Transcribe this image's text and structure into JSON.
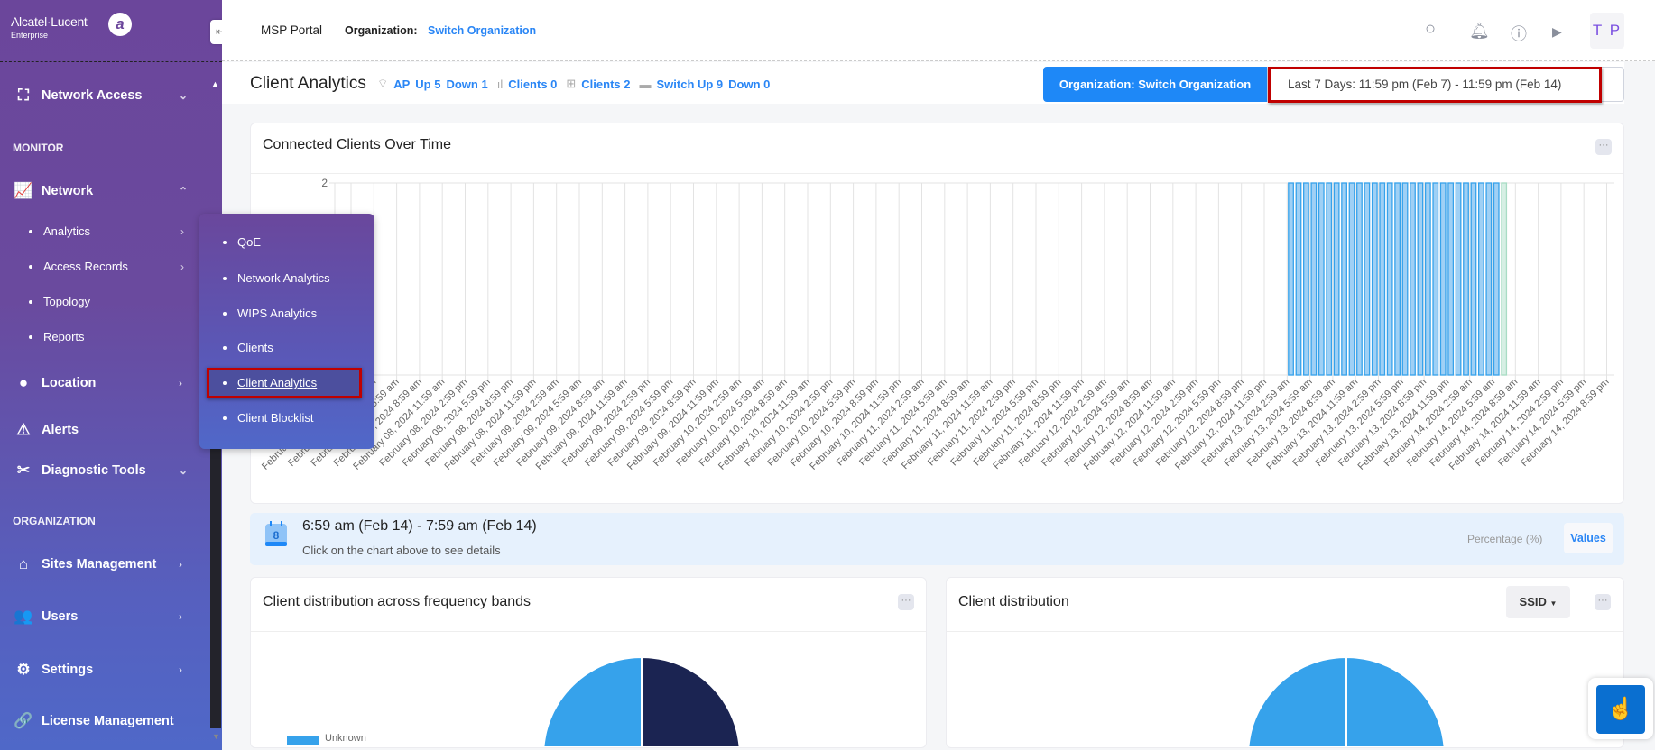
{
  "brand": {
    "name": "Alcatel·Lucent",
    "sub": "Enterprise",
    "logo_letter": "a"
  },
  "header": {
    "portal": "MSP Portal",
    "org_label": "Organization:",
    "org_link": "Switch Organization",
    "avatar": "T P"
  },
  "sidebar": {
    "network_access": "Network Access",
    "monitor": "MONITOR",
    "network": "Network",
    "network_sub": [
      "Analytics",
      "Access Records",
      "Topology",
      "Reports"
    ],
    "location": "Location",
    "alerts": "Alerts",
    "diagnostic": "Diagnostic Tools",
    "organization": "ORGANIZATION",
    "sites": "Sites Management",
    "users": "Users",
    "settings": "Settings",
    "license": "License Management"
  },
  "popup": {
    "items": [
      "QoE",
      "Network Analytics",
      "WIPS Analytics",
      "Clients",
      "Client Analytics",
      "Client Blocklist"
    ],
    "active": "Client Analytics"
  },
  "subheader": {
    "title": "Client Analytics",
    "ap": "AP",
    "ap_up": "Up 5",
    "ap_down": "Down 1",
    "wifi_clients": "Clients 0",
    "wired_clients": "Clients 2",
    "switch_up": "Switch Up 9",
    "switch_down": "Down 0",
    "org_button": "Organization: Switch Organization",
    "date_range": "Last 7 Days: 11:59 pm (Feb 7) - 11:59 pm (Feb 14)"
  },
  "info": {
    "calendar_day": "8",
    "range": "6:59 am (Feb 14) - 7:59 am (Feb 14)",
    "hint": "Click on the chart above to see details",
    "percentage": "Percentage (%)",
    "values": "Values"
  },
  "cards": {
    "clients_over_time": "Connected Clients Over Time",
    "freq_bands": "Client distribution across frequency bands",
    "distribution": "Client distribution",
    "ssid": "SSID",
    "more": "···",
    "legend_unknown": "Unknown"
  },
  "colors": {
    "accent": "#1e88f7",
    "bar_fill": "#9fd0f5",
    "bar_stroke": "#36a2eb",
    "bar_selected": "#a8dcc4",
    "pie_dark": "#1b2452",
    "pie_light": "#36a2eb"
  },
  "chart_data": [
    {
      "type": "bar",
      "title": "Connected Clients Over Time",
      "ylim": [
        0,
        2
      ],
      "y_ticks": [
        "2"
      ],
      "grid": true,
      "x_ticks": [
        "February 07, 2024 11:59 pm",
        "February 08, 2024 2:59 am",
        "February 08, 2024 5:59 am",
        "February 08, 2024 8:59 am",
        "February 08, 2024 11:59 am",
        "February 08, 2024 2:59 pm",
        "February 08, 2024 5:59 pm",
        "February 08, 2024 8:59 pm",
        "February 08, 2024 11:59 pm",
        "February 09, 2024 2:59 am",
        "February 09, 2024 5:59 am",
        "February 09, 2024 8:59 am",
        "February 09, 2024 11:59 am",
        "February 09, 2024 2:59 pm",
        "February 09, 2024 5:59 pm",
        "February 09, 2024 8:59 pm",
        "February 09, 2024 11:59 pm",
        "February 10, 2024 2:59 am",
        "February 10, 2024 5:59 am",
        "February 10, 2024 8:59 am",
        "February 10, 2024 11:59 am",
        "February 10, 2024 2:59 pm",
        "February 10, 2024 5:59 pm",
        "February 10, 2024 8:59 pm",
        "February 10, 2024 11:59 pm",
        "February 11, 2024 2:59 am",
        "February 11, 2024 5:59 am",
        "February 11, 2024 8:59 am",
        "February 11, 2024 11:59 am",
        "February 11, 2024 2:59 pm",
        "February 11, 2024 5:59 pm",
        "February 11, 2024 8:59 pm",
        "February 11, 2024 11:59 pm",
        "February 12, 2024 2:59 am",
        "February 12, 2024 5:59 am",
        "February 12, 2024 8:59 am",
        "February 12, 2024 11:59 am",
        "February 12, 2024 2:59 pm",
        "February 12, 2024 5:59 pm",
        "February 12, 2024 8:59 pm",
        "February 12, 2024 11:59 pm",
        "February 13, 2024 2:59 am",
        "February 13, 2024 5:59 am",
        "February 13, 2024 8:59 am",
        "February 13, 2024 11:59 am",
        "February 13, 2024 2:59 pm",
        "February 13, 2024 5:59 pm",
        "February 13, 2024 8:59 pm",
        "February 13, 2024 11:59 pm",
        "February 14, 2024 2:59 am",
        "February 14, 2024 5:59 am",
        "February 14, 2024 8:59 am",
        "February 14, 2024 11:59 am",
        "February 14, 2024 2:59 pm",
        "February 14, 2024 5:59 pm",
        "February 14, 2024 8:59 pm"
      ],
      "selected": "February 14, 2024 6:59 am",
      "points": [
        {
          "x": "February 13, 2024 2:59 am",
          "y": 2
        },
        {
          "x": "February 13, 2024 3:59 am",
          "y": 2
        },
        {
          "x": "February 13, 2024 4:59 am",
          "y": 2
        },
        {
          "x": "February 13, 2024 5:59 am",
          "y": 2
        },
        {
          "x": "February 13, 2024 6:59 am",
          "y": 2
        },
        {
          "x": "February 13, 2024 7:59 am",
          "y": 2
        },
        {
          "x": "February 13, 2024 8:59 am",
          "y": 2
        },
        {
          "x": "February 13, 2024 9:59 am",
          "y": 2
        },
        {
          "x": "February 13, 2024 10:59 am",
          "y": 2
        },
        {
          "x": "February 13, 2024 11:59 am",
          "y": 2
        },
        {
          "x": "February 13, 2024 12:59 pm",
          "y": 2
        },
        {
          "x": "February 13, 2024 1:59 pm",
          "y": 2
        },
        {
          "x": "February 13, 2024 2:59 pm",
          "y": 2
        },
        {
          "x": "February 13, 2024 3:59 pm",
          "y": 2
        },
        {
          "x": "February 13, 2024 4:59 pm",
          "y": 2
        },
        {
          "x": "February 13, 2024 5:59 pm",
          "y": 2
        },
        {
          "x": "February 13, 2024 6:59 pm",
          "y": 2
        },
        {
          "x": "February 13, 2024 7:59 pm",
          "y": 2
        },
        {
          "x": "February 13, 2024 8:59 pm",
          "y": 2
        },
        {
          "x": "February 13, 2024 9:59 pm",
          "y": 2
        },
        {
          "x": "February 13, 2024 10:59 pm",
          "y": 2
        },
        {
          "x": "February 13, 2024 11:59 pm",
          "y": 2
        },
        {
          "x": "February 14, 2024 12:59 am",
          "y": 2
        },
        {
          "x": "February 14, 2024 1:59 am",
          "y": 2
        },
        {
          "x": "February 14, 2024 2:59 am",
          "y": 2
        },
        {
          "x": "February 14, 2024 3:59 am",
          "y": 2
        },
        {
          "x": "February 14, 2024 4:59 am",
          "y": 2
        },
        {
          "x": "February 14, 2024 5:59 am",
          "y": 2
        },
        {
          "x": "February 14, 2024 6:59 am",
          "y": 2
        }
      ]
    },
    {
      "type": "pie",
      "title": "Client distribution across frequency bands",
      "legend": [
        "Unknown"
      ],
      "slices": [
        {
          "value": 50,
          "color": "#1b2452"
        },
        {
          "value": 50,
          "color": "#36a2eb"
        }
      ]
    },
    {
      "type": "pie",
      "title": "Client distribution",
      "slices": [
        {
          "value": 50,
          "color": "#36a2eb"
        },
        {
          "value": 50,
          "color": "#36a2eb"
        }
      ]
    }
  ]
}
